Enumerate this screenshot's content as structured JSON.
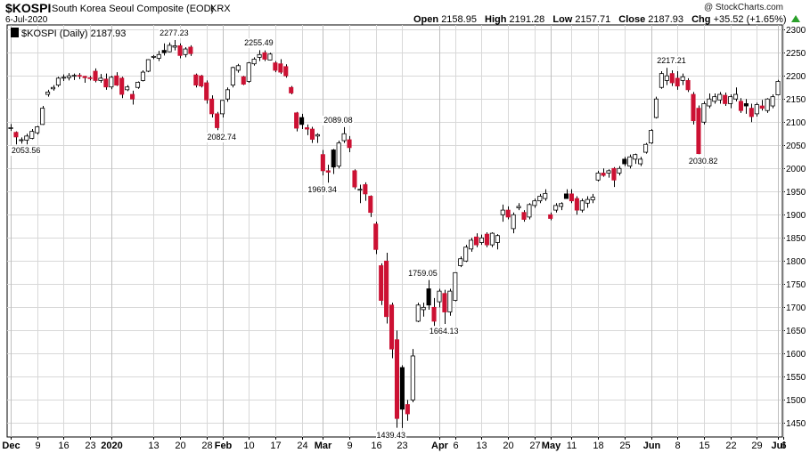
{
  "header": {
    "symbol": "$KOSPI",
    "description": "South Korea Seoul Composite (EOD)",
    "exchange": "KRX",
    "date": "6-Jul-2020",
    "copyright": "@ StockCharts.com",
    "open_label": "Open",
    "open": "2158.95",
    "high_label": "High",
    "high": "2191.28",
    "low_label": "Low",
    "low": "2157.71",
    "close_label": "Close",
    "close": "2187.93",
    "chg_label": "Chg",
    "chg": "+35.52 (+1.65%)"
  },
  "legend": {
    "text": "$KOSPI (Daily) 2187.93"
  },
  "colors": {
    "up": "#ffffff",
    "down_black": "#000000",
    "down_red": "#cc1133",
    "grid": "#d8d8d8",
    "axis": "#000000"
  },
  "chart_data": {
    "type": "candlestick",
    "y_range": [
      1420,
      2310
    ],
    "y_ticks": [
      1450,
      1500,
      1550,
      1600,
      1650,
      1700,
      1750,
      1800,
      1850,
      1900,
      1950,
      2000,
      2050,
      2100,
      2150,
      2200,
      2250,
      2300
    ],
    "x_ticks": [
      {
        "label": "Dec",
        "i": 0,
        "bold": true
      },
      {
        "label": "9",
        "i": 5
      },
      {
        "label": "16",
        "i": 10
      },
      {
        "label": "23",
        "i": 15
      },
      {
        "label": "2020",
        "i": 19,
        "bold": true
      },
      {
        "label": "13",
        "i": 27
      },
      {
        "label": "20",
        "i": 32
      },
      {
        "label": "28",
        "i": 37
      },
      {
        "label": "Feb",
        "i": 40,
        "bold": true
      },
      {
        "label": "10",
        "i": 45
      },
      {
        "label": "17",
        "i": 50
      },
      {
        "label": "24",
        "i": 55
      },
      {
        "label": "Mar",
        "i": 59,
        "bold": true
      },
      {
        "label": "9",
        "i": 64
      },
      {
        "label": "16",
        "i": 69
      },
      {
        "label": "23",
        "i": 74
      },
      {
        "label": "Apr",
        "i": 81,
        "bold": true
      },
      {
        "label": "6",
        "i": 84
      },
      {
        "label": "13",
        "i": 89
      },
      {
        "label": "20",
        "i": 94
      },
      {
        "label": "27",
        "i": 99
      },
      {
        "label": "May",
        "i": 102,
        "bold": true
      },
      {
        "label": "11",
        "i": 106
      },
      {
        "label": "18",
        "i": 111
      },
      {
        "label": "25",
        "i": 116
      },
      {
        "label": "Jun",
        "i": 121,
        "bold": true
      },
      {
        "label": "8",
        "i": 126
      },
      {
        "label": "15",
        "i": 131
      },
      {
        "label": "22",
        "i": 136
      },
      {
        "label": "29",
        "i": 141
      },
      {
        "label": "Jul",
        "i": 145,
        "bold": true
      },
      {
        "label": "6",
        "i": 146
      }
    ],
    "annotations": [
      {
        "text": "2053.56",
        "i": 3,
        "value": 2053.56,
        "pos": "below"
      },
      {
        "text": "2277.23",
        "i": 31,
        "value": 2277.23,
        "pos": "above"
      },
      {
        "text": "2255.49",
        "i": 47,
        "value": 2255.49,
        "pos": "above"
      },
      {
        "text": "2082.74",
        "i": 40,
        "value": 2082.74,
        "pos": "below"
      },
      {
        "text": "2089.08",
        "i": 62,
        "value": 2089.08,
        "pos": "above"
      },
      {
        "text": "1969.34",
        "i": 59,
        "value": 1969.34,
        "pos": "below"
      },
      {
        "text": "1759.05",
        "i": 78,
        "value": 1759.05,
        "pos": "above"
      },
      {
        "text": "1439.43",
        "i": 72,
        "value": 1439.43,
        "pos": "below"
      },
      {
        "text": "1664.13",
        "i": 82,
        "value": 1664.13,
        "pos": "below"
      },
      {
        "text": "2217.21",
        "i": 125,
        "value": 2217.21,
        "pos": "above"
      },
      {
        "text": "2030.82",
        "i": 131,
        "value": 2030.82,
        "pos": "below"
      }
    ],
    "candles": [
      {
        "o": 2088,
        "h": 2096,
        "l": 2081,
        "c": 2088
      },
      {
        "o": 2078,
        "h": 2080,
        "l": 2052,
        "c": 2068
      },
      {
        "o": 2062,
        "h": 2067,
        "l": 2053.56,
        "c": 2062
      },
      {
        "o": 2061,
        "h": 2075,
        "l": 2052,
        "c": 2070
      },
      {
        "o": 2065,
        "h": 2085,
        "l": 2063,
        "c": 2080
      },
      {
        "o": 2077,
        "h": 2092,
        "l": 2073,
        "c": 2090
      },
      {
        "o": 2095,
        "h": 2135,
        "l": 2094,
        "c": 2130
      },
      {
        "o": 2160,
        "h": 2170,
        "l": 2155,
        "c": 2165
      },
      {
        "o": 2172,
        "h": 2180,
        "l": 2168,
        "c": 2175
      },
      {
        "o": 2180,
        "h": 2198,
        "l": 2176,
        "c": 2195
      },
      {
        "o": 2195,
        "h": 2203,
        "l": 2189,
        "c": 2197
      },
      {
        "o": 2196,
        "h": 2206,
        "l": 2190,
        "c": 2200
      },
      {
        "o": 2200,
        "h": 2205,
        "l": 2191,
        "c": 2201
      },
      {
        "o": 2201,
        "h": 2206,
        "l": 2193,
        "c": 2199
      },
      {
        "o": 2199,
        "h": 2200,
        "l": 2185,
        "c": 2196
      },
      {
        "o": 2196,
        "h": 2200,
        "l": 2190,
        "c": 2195
      },
      {
        "o": 2210,
        "h": 2216,
        "l": 2186,
        "c": 2190
      },
      {
        "o": 2190,
        "h": 2204,
        "l": 2185,
        "c": 2195
      },
      {
        "o": 2193,
        "h": 2205,
        "l": 2170,
        "c": 2176
      },
      {
        "o": 2176,
        "h": 2200,
        "l": 2171,
        "c": 2197
      },
      {
        "o": 2200,
        "h": 2208,
        "l": 2178,
        "c": 2180
      },
      {
        "o": 2195,
        "h": 2198,
        "l": 2152,
        "c": 2160
      },
      {
        "o": 2170,
        "h": 2180,
        "l": 2167,
        "c": 2176
      },
      {
        "o": 2160,
        "h": 2168,
        "l": 2138,
        "c": 2150
      },
      {
        "o": 2175,
        "h": 2188,
        "l": 2172,
        "c": 2186
      },
      {
        "o": 2190,
        "h": 2212,
        "l": 2188,
        "c": 2208
      },
      {
        "o": 2210,
        "h": 2236,
        "l": 2208,
        "c": 2235
      },
      {
        "o": 2240,
        "h": 2245,
        "l": 2236,
        "c": 2242
      },
      {
        "o": 2238,
        "h": 2254,
        "l": 2232,
        "c": 2246
      },
      {
        "o": 2255,
        "h": 2270,
        "l": 2244,
        "c": 2250
      },
      {
        "o": 2252,
        "h": 2272,
        "l": 2251,
        "c": 2266
      },
      {
        "o": 2262,
        "h": 2277.23,
        "l": 2255,
        "c": 2265
      },
      {
        "o": 2265,
        "h": 2270,
        "l": 2238,
        "c": 2244
      },
      {
        "o": 2246,
        "h": 2262,
        "l": 2240,
        "c": 2258
      },
      {
        "o": 2262,
        "h": 2266,
        "l": 2243,
        "c": 2248
      },
      {
        "o": 2202,
        "h": 2205,
        "l": 2175,
        "c": 2180
      },
      {
        "o": 2200,
        "h": 2202,
        "l": 2175,
        "c": 2178
      },
      {
        "o": 2185,
        "h": 2190,
        "l": 2140,
        "c": 2148
      },
      {
        "o": 2150,
        "h": 2158,
        "l": 2110,
        "c": 2118
      },
      {
        "o": 2118,
        "h": 2122,
        "l": 2082.74,
        "c": 2088
      },
      {
        "o": 2118,
        "h": 2148,
        "l": 2110,
        "c": 2147
      },
      {
        "o": 2150,
        "h": 2175,
        "l": 2144,
        "c": 2170
      },
      {
        "o": 2180,
        "h": 2220,
        "l": 2175,
        "c": 2218
      },
      {
        "o": 2212,
        "h": 2226,
        "l": 2207,
        "c": 2222
      },
      {
        "o": 2198,
        "h": 2200,
        "l": 2180,
        "c": 2182
      },
      {
        "o": 2188,
        "h": 2230,
        "l": 2185,
        "c": 2228
      },
      {
        "o": 2226,
        "h": 2240,
        "l": 2222,
        "c": 2236
      },
      {
        "o": 2240,
        "h": 2255.49,
        "l": 2232,
        "c": 2246
      },
      {
        "o": 2250,
        "h": 2255,
        "l": 2232,
        "c": 2236
      },
      {
        "o": 2234,
        "h": 2250,
        "l": 2233,
        "c": 2247
      },
      {
        "o": 2228,
        "h": 2232,
        "l": 2208,
        "c": 2212
      },
      {
        "o": 2226,
        "h": 2236,
        "l": 2204,
        "c": 2208
      },
      {
        "o": 2220,
        "h": 2225,
        "l": 2196,
        "c": 2200
      },
      {
        "o": 2175,
        "h": 2178,
        "l": 2160,
        "c": 2163
      },
      {
        "o": 2120,
        "h": 2122,
        "l": 2080,
        "c": 2087
      },
      {
        "o": 2110,
        "h": 2118,
        "l": 2085,
        "c": 2095
      },
      {
        "o": 2088,
        "h": 2095,
        "l": 2072,
        "c": 2085
      },
      {
        "o": 2085,
        "h": 2090,
        "l": 2055,
        "c": 2063
      },
      {
        "o": 2070,
        "h": 2076,
        "l": 2055,
        "c": 2073
      },
      {
        "o": 2030,
        "h": 2040,
        "l": 1985,
        "c": 1995
      },
      {
        "o": 1995,
        "h": 2008,
        "l": 1969.34,
        "c": 1992
      },
      {
        "o": 2040,
        "h": 2042,
        "l": 1988,
        "c": 2003
      },
      {
        "o": 2005,
        "h": 2060,
        "l": 2000,
        "c": 2055
      },
      {
        "o": 2060,
        "h": 2089.08,
        "l": 2055,
        "c": 2075
      },
      {
        "o": 2062,
        "h": 2070,
        "l": 2035,
        "c": 2045
      },
      {
        "o": 1995,
        "h": 1998,
        "l": 1955,
        "c": 1960
      },
      {
        "o": 1955,
        "h": 1965,
        "l": 1925,
        "c": 1955
      },
      {
        "o": 1965,
        "h": 1970,
        "l": 1930,
        "c": 1945
      },
      {
        "o": 1940,
        "h": 1942,
        "l": 1895,
        "c": 1905
      },
      {
        "o": 1880,
        "h": 1885,
        "l": 1815,
        "c": 1825
      },
      {
        "o": 1790,
        "h": 1795,
        "l": 1705,
        "c": 1715
      },
      {
        "o": 1800,
        "h": 1818,
        "l": 1665,
        "c": 1680
      },
      {
        "o": 1705,
        "h": 1710,
        "l": 1590,
        "c": 1610
      },
      {
        "o": 1630,
        "h": 1650,
        "l": 1440,
        "c": 1460
      },
      {
        "o": 1570,
        "h": 1575,
        "l": 1439.43,
        "c": 1480
      },
      {
        "o": 1490,
        "h": 1500,
        "l": 1455,
        "c": 1470
      },
      {
        "o": 1500,
        "h": 1610,
        "l": 1495,
        "c": 1595
      },
      {
        "o": 1670,
        "h": 1710,
        "l": 1668,
        "c": 1705
      },
      {
        "o": 1695,
        "h": 1710,
        "l": 1680,
        "c": 1700
      },
      {
        "o": 1740,
        "h": 1759.05,
        "l": 1695,
        "c": 1705
      },
      {
        "o": 1700,
        "h": 1720,
        "l": 1660,
        "c": 1670
      },
      {
        "o": 1712,
        "h": 1740,
        "l": 1700,
        "c": 1735
      },
      {
        "o": 1730,
        "h": 1738,
        "l": 1664.13,
        "c": 1690
      },
      {
        "o": 1690,
        "h": 1740,
        "l": 1682,
        "c": 1735
      },
      {
        "o": 1715,
        "h": 1775,
        "l": 1713,
        "c": 1775
      },
      {
        "o": 1790,
        "h": 1810,
        "l": 1787,
        "c": 1805
      },
      {
        "o": 1800,
        "h": 1835,
        "l": 1798,
        "c": 1830
      },
      {
        "o": 1826,
        "h": 1850,
        "l": 1820,
        "c": 1845
      },
      {
        "o": 1852,
        "h": 1860,
        "l": 1830,
        "c": 1835
      },
      {
        "o": 1840,
        "h": 1857,
        "l": 1835,
        "c": 1850
      },
      {
        "o": 1858,
        "h": 1862,
        "l": 1830,
        "c": 1835
      },
      {
        "o": 1835,
        "h": 1862,
        "l": 1830,
        "c": 1860
      },
      {
        "o": 1840,
        "h": 1858,
        "l": 1825,
        "c": 1855
      },
      {
        "o": 1900,
        "h": 1922,
        "l": 1885,
        "c": 1910
      },
      {
        "o": 1910,
        "h": 1918,
        "l": 1890,
        "c": 1895
      },
      {
        "o": 1870,
        "h": 1905,
        "l": 1860,
        "c": 1900
      },
      {
        "o": 1915,
        "h": 1925,
        "l": 1910,
        "c": 1918
      },
      {
        "o": 1905,
        "h": 1910,
        "l": 1885,
        "c": 1890
      },
      {
        "o": 1895,
        "h": 1925,
        "l": 1890,
        "c": 1922
      },
      {
        "o": 1920,
        "h": 1935,
        "l": 1915,
        "c": 1930
      },
      {
        "o": 1930,
        "h": 1945,
        "l": 1925,
        "c": 1940
      },
      {
        "o": 1935,
        "h": 1955,
        "l": 1930,
        "c": 1946
      },
      {
        "o": 1900,
        "h": 1905,
        "l": 1888,
        "c": 1892
      },
      {
        "o": 1910,
        "h": 1925,
        "l": 1905,
        "c": 1920
      },
      {
        "o": 1918,
        "h": 1927,
        "l": 1910,
        "c": 1924
      },
      {
        "o": 1945,
        "h": 1955,
        "l": 1935,
        "c": 1935
      },
      {
        "o": 1945,
        "h": 1955,
        "l": 1925,
        "c": 1930
      },
      {
        "o": 1935,
        "h": 1940,
        "l": 1900,
        "c": 1910
      },
      {
        "o": 1910,
        "h": 1935,
        "l": 1905,
        "c": 1930
      },
      {
        "o": 1925,
        "h": 1940,
        "l": 1915,
        "c": 1933
      },
      {
        "o": 1932,
        "h": 1945,
        "l": 1925,
        "c": 1938
      },
      {
        "o": 1975,
        "h": 1995,
        "l": 1972,
        "c": 1990
      },
      {
        "o": 1990,
        "h": 2000,
        "l": 1982,
        "c": 1985
      },
      {
        "o": 1990,
        "h": 1998,
        "l": 1980,
        "c": 1995
      },
      {
        "o": 2000,
        "h": 2003,
        "l": 1960,
        "c": 1975
      },
      {
        "o": 1990,
        "h": 2005,
        "l": 1985,
        "c": 2000
      },
      {
        "o": 2020,
        "h": 2025,
        "l": 2005,
        "c": 2010
      },
      {
        "o": 2005,
        "h": 2030,
        "l": 2000,
        "c": 2025
      },
      {
        "o": 2020,
        "h": 2032,
        "l": 2010,
        "c": 2030
      },
      {
        "o": 2010,
        "h": 2025,
        "l": 2005,
        "c": 2020
      },
      {
        "o": 2035,
        "h": 2055,
        "l": 2032,
        "c": 2052
      },
      {
        "o": 2055,
        "h": 2085,
        "l": 2053,
        "c": 2082
      },
      {
        "o": 2110,
        "h": 2155,
        "l": 2108,
        "c": 2150
      },
      {
        "o": 2175,
        "h": 2210,
        "l": 2172,
        "c": 2205
      },
      {
        "o": 2190,
        "h": 2217.21,
        "l": 2180,
        "c": 2200
      },
      {
        "o": 2205,
        "h": 2212,
        "l": 2178,
        "c": 2185
      },
      {
        "o": 2195,
        "h": 2210,
        "l": 2170,
        "c": 2178
      },
      {
        "o": 2190,
        "h": 2205,
        "l": 2180,
        "c": 2198
      },
      {
        "o": 2190,
        "h": 2195,
        "l": 2165,
        "c": 2170
      },
      {
        "o": 2160,
        "h": 2165,
        "l": 2095,
        "c": 2103
      },
      {
        "o": 2130,
        "h": 2136,
        "l": 2030.82,
        "c": 2032
      },
      {
        "o": 2100,
        "h": 2145,
        "l": 2095,
        "c": 2140
      },
      {
        "o": 2135,
        "h": 2162,
        "l": 2130,
        "c": 2150
      },
      {
        "o": 2145,
        "h": 2162,
        "l": 2140,
        "c": 2155
      },
      {
        "o": 2148,
        "h": 2165,
        "l": 2140,
        "c": 2160
      },
      {
        "o": 2158,
        "h": 2164,
        "l": 2135,
        "c": 2140
      },
      {
        "o": 2140,
        "h": 2160,
        "l": 2130,
        "c": 2155
      },
      {
        "o": 2150,
        "h": 2175,
        "l": 2145,
        "c": 2160
      },
      {
        "o": 2145,
        "h": 2152,
        "l": 2120,
        "c": 2125
      },
      {
        "o": 2140,
        "h": 2150,
        "l": 2118,
        "c": 2135
      },
      {
        "o": 2130,
        "h": 2140,
        "l": 2100,
        "c": 2112
      },
      {
        "o": 2118,
        "h": 2142,
        "l": 2112,
        "c": 2138
      },
      {
        "o": 2135,
        "h": 2148,
        "l": 2125,
        "c": 2130
      },
      {
        "o": 2125,
        "h": 2152,
        "l": 2120,
        "c": 2150
      },
      {
        "o": 2135,
        "h": 2160,
        "l": 2130,
        "c": 2155
      },
      {
        "o": 2158.95,
        "h": 2191.28,
        "l": 2157.71,
        "c": 2187.93
      }
    ]
  }
}
